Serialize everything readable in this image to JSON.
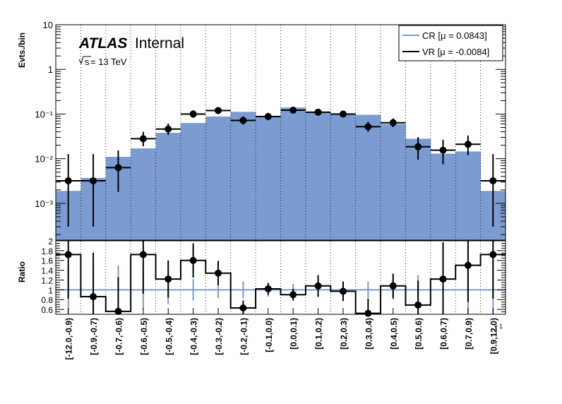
{
  "chart_data": {
    "type": "bar",
    "categories": [
      "[-12.0,-0.9)",
      "[-0.9,-0.7)",
      "[-0.7,-0.6)",
      "[-0.6,-0.5)",
      "[-0.5,-0.4)",
      "[-0.4,-0.3)",
      "[-0.3,-0.2)",
      "[-0.2,-0.1)",
      "[-0.1,0.0)",
      "[0.0,0.1)",
      "[0.1,0.2)",
      "[0.2,0.3)",
      "[0.3,0.4)",
      "[0.4,0.5)",
      "[0.5,0.6)",
      "[0.6,0.7)",
      "[0.7,0.9)",
      "[0.9,12.0)"
    ],
    "ylabel": "Evts./bin",
    "ylim": [
      0.00015,
      10
    ],
    "yscale": "log",
    "grid_x": true,
    "legend_position": "top-right",
    "tick_labels_y": [
      {
        "v": 10,
        "label": "10"
      },
      {
        "v": 1,
        "label": "1"
      },
      {
        "v": 0.1,
        "label": "10⁻¹"
      },
      {
        "v": 0.01,
        "label": "10⁻²"
      },
      {
        "v": 0.001,
        "label": "10⁻³"
      }
    ],
    "series": [
      {
        "name": "CR [μ = 0.0843]",
        "style": "filled-histogram",
        "color": "#7b9bd1",
        "values": [
          0.0019,
          0.0037,
          0.011,
          0.017,
          0.038,
          0.063,
          0.088,
          0.112,
          0.085,
          0.14,
          0.11,
          0.1,
          0.096,
          0.06,
          0.028,
          0.013,
          0.0145,
          0.0019
        ]
      },
      {
        "name": "VR [μ = -0.0084]",
        "style": "points",
        "color": "#000000",
        "values": [
          0.0032,
          0.0032,
          0.0063,
          0.028,
          0.046,
          0.1,
          0.12,
          0.072,
          0.088,
          0.122,
          0.11,
          0.1,
          0.052,
          0.064,
          0.0185,
          0.0155,
          0.021,
          0.0032
        ],
        "err_low": [
          0.0029,
          0.0029,
          0.0045,
          0.009,
          0.012,
          0.018,
          0.019,
          0.014,
          0.015,
          0.019,
          0.017,
          0.016,
          0.012,
          0.013,
          0.009,
          0.008,
          0.009,
          0.0029
        ],
        "err_high": [
          0.0095,
          0.0095,
          0.009,
          0.012,
          0.015,
          0.021,
          0.023,
          0.017,
          0.018,
          0.022,
          0.02,
          0.019,
          0.015,
          0.016,
          0.012,
          0.011,
          0.012,
          0.0095
        ]
      }
    ],
    "ratio": {
      "ylabel": "Ratio",
      "ylim": [
        0.5,
        2.0
      ],
      "ticks": [
        {
          "v": 0.6,
          "label": "0.6"
        },
        {
          "v": 0.8,
          "label": "0.8"
        },
        {
          "v": 1.0,
          "label": "1"
        },
        {
          "v": 1.2,
          "label": "1.2"
        },
        {
          "v": 1.4,
          "label": "1.4"
        },
        {
          "v": 1.6,
          "label": "1.6"
        },
        {
          "v": 1.8,
          "label": "1.8"
        },
        {
          "v": 2.0,
          "label": "2"
        }
      ],
      "reference": 1.0,
      "values": [
        1.72,
        0.86,
        0.56,
        1.72,
        1.22,
        1.6,
        1.34,
        0.63,
        1.02,
        0.9,
        1.08,
        0.97,
        0.52,
        1.08,
        0.69,
        1.22,
        1.5,
        1.72
      ],
      "err": [
        0.9,
        0.9,
        0.7,
        0.8,
        0.38,
        0.35,
        0.25,
        0.15,
        0.12,
        0.12,
        0.22,
        0.2,
        0.3,
        0.25,
        0.5,
        0.75,
        0.75,
        0.9
      ],
      "cr_err": [
        0.5,
        0.5,
        0.5,
        0.4,
        0.3,
        0.22,
        0.17,
        0.17,
        0.14,
        0.12,
        0.15,
        0.15,
        0.17,
        0.2,
        0.3,
        0.5,
        0.5,
        0.6
      ]
    },
    "xaxis_label": "γ 1"
  },
  "annotations": {
    "atlas": "ATLAS",
    "internal": "Internal",
    "sqrt_s": "s",
    "energy": " = 13 TeV"
  }
}
